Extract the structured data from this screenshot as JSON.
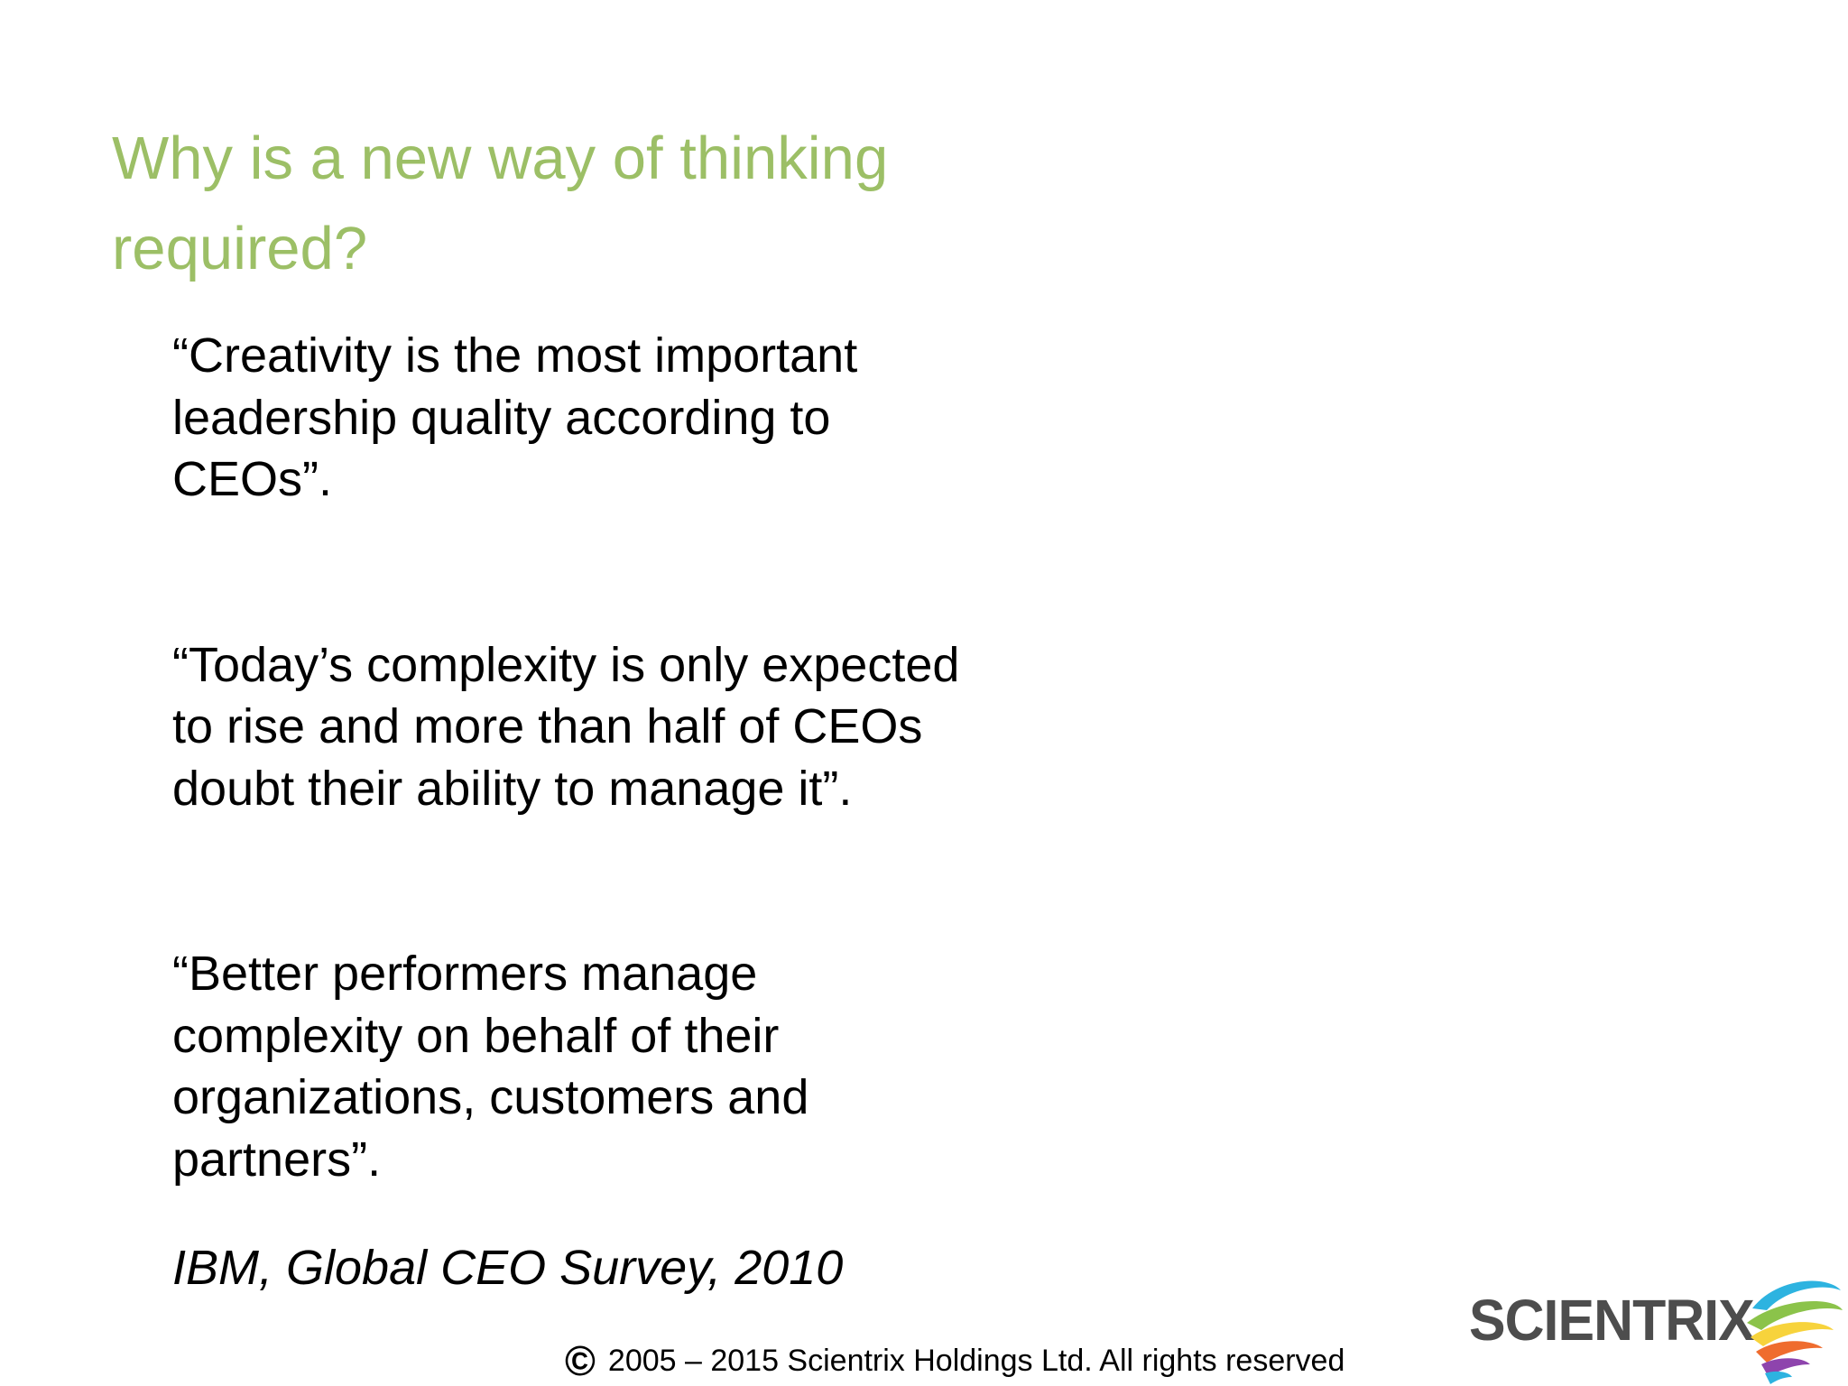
{
  "slide": {
    "title_lines": [
      "Why is a new way of thinking",
      "required?"
    ],
    "quotes": [
      {
        "lines": [
          "“Creativity is the most important",
          "leadership quality according to",
          "CEOs”."
        ]
      },
      {
        "lines": [
          "“Today’s complexity is only expected",
          "to rise and more than half of CEOs",
          "doubt their ability to manage it”."
        ]
      },
      {
        "lines": [
          "“Better performers manage",
          "complexity on behalf of their",
          "organizations, customers and",
          "partners”."
        ]
      }
    ],
    "source": "IBM, Global CEO Survey, 2010"
  },
  "footer": {
    "copyright_symbol": "©",
    "text": "2005 – 2015 Scientrix Holdings Ltd. All rights reserved"
  },
  "logo": {
    "text": "SCIENTRIX",
    "icon": "scientrix-swirl-icon"
  },
  "colors": {
    "title": "#9cbf66",
    "body_text": "#000000",
    "logo_text": "#4d4d4d",
    "swirl": [
      "#2db3e0",
      "#8bc34a",
      "#f7d33c",
      "#ef6c2e",
      "#8e44ad"
    ]
  }
}
